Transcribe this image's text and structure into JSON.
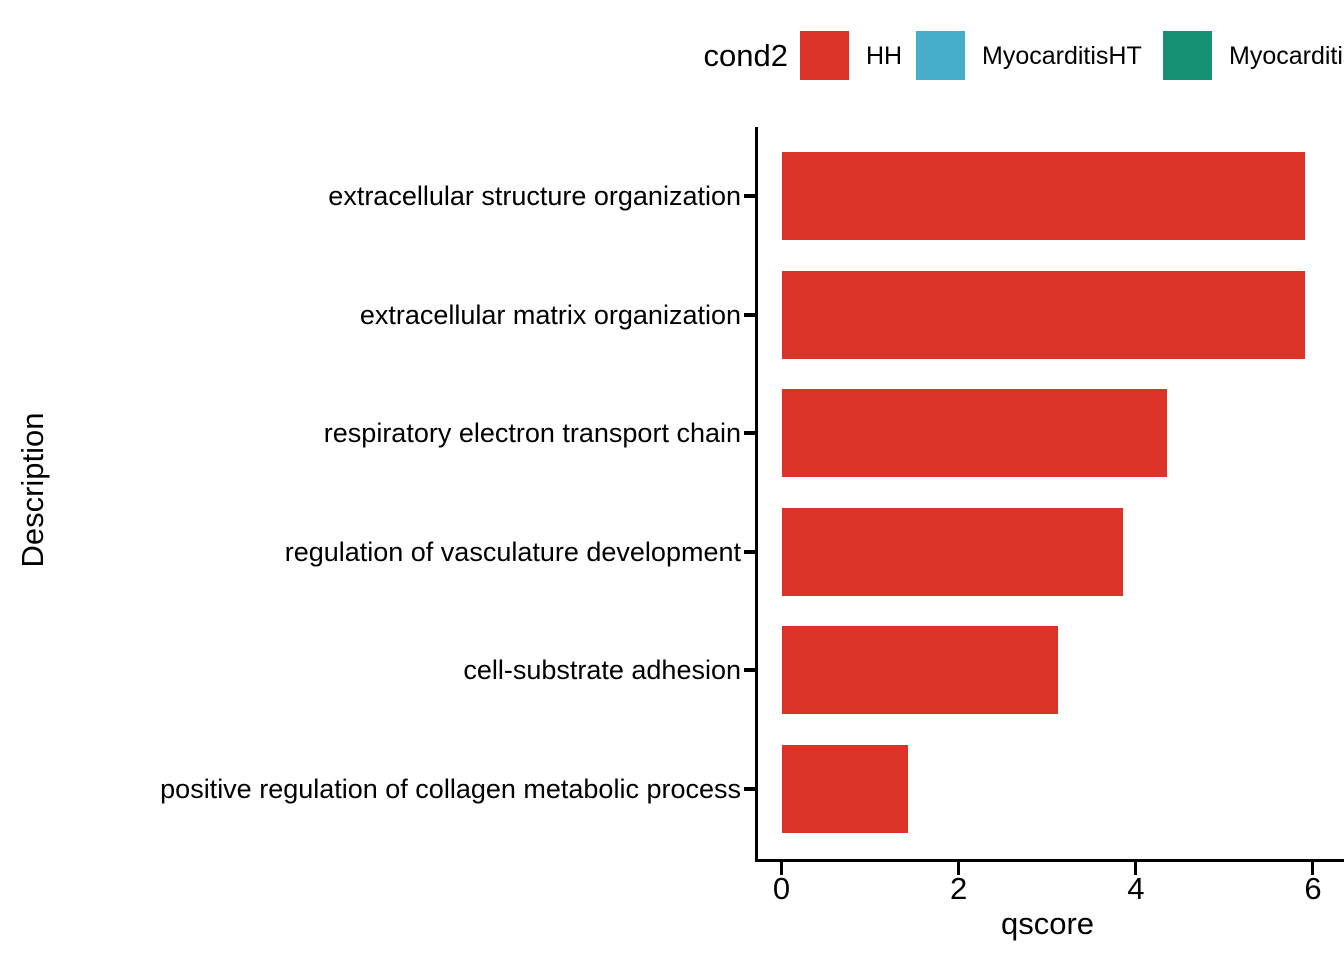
{
  "chart_data": {
    "type": "bar",
    "orientation": "horizontal",
    "xlabel": "qscore",
    "ylabel": "Description",
    "xlim": [
      0,
      6.35
    ],
    "x_ticks": [
      0,
      2,
      4,
      6
    ],
    "grid": false,
    "categories": [
      "extracellular structure organization",
      "extracellular matrix organization",
      "respiratory electron transport chain",
      "regulation of vasculature development",
      "cell-substrate adhesion",
      "positive regulation of collagen metabolic process"
    ],
    "series": [
      {
        "name": "HH",
        "values": [
          5.9,
          5.9,
          4.35,
          3.85,
          3.12,
          1.42
        ]
      }
    ],
    "bar_color": "#db3327",
    "legend": {
      "title": "cond2",
      "position": "top",
      "entries": [
        {
          "label": "HH",
          "color": "#db3327"
        },
        {
          "label": "MyocarditisHT",
          "color": "#47adcb"
        },
        {
          "label": "Myocarditis",
          "color": "#169174",
          "note": "clipped at right edge"
        }
      ]
    }
  }
}
